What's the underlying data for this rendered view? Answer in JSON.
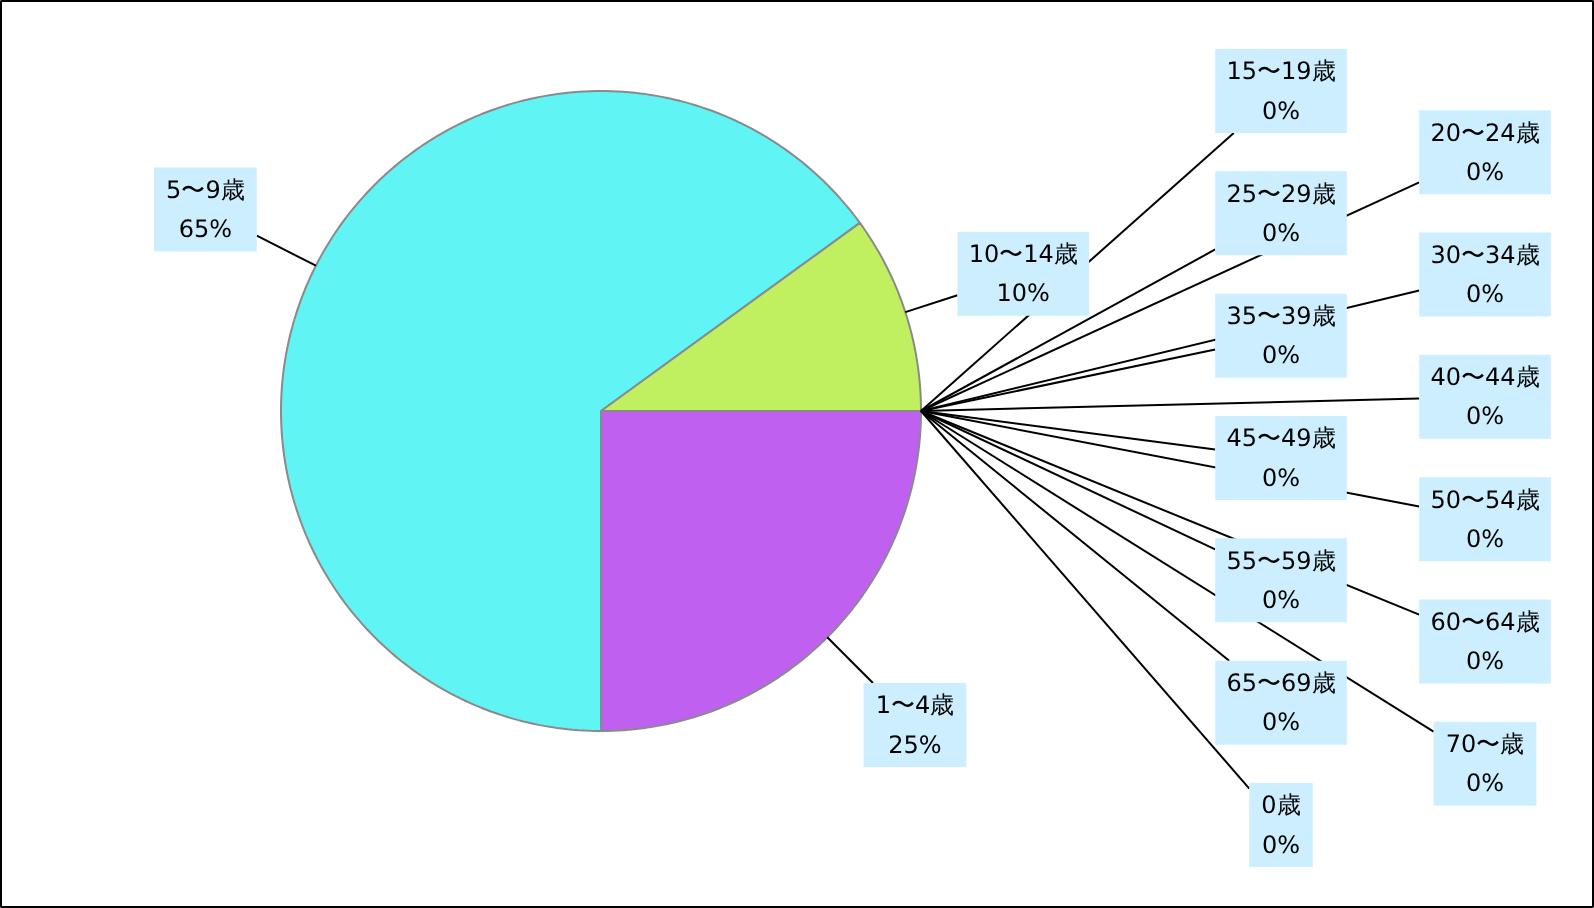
{
  "chart_data": {
    "type": "pie",
    "categories": [
      "0歳",
      "1〜4歳",
      "5〜9歳",
      "10〜14歳",
      "15〜19歳",
      "20〜24歳",
      "25〜29歳",
      "30〜34歳",
      "35〜39歳",
      "40〜44歳",
      "45〜49歳",
      "50〜54歳",
      "55〜59歳",
      "60〜64歳",
      "65〜69歳",
      "70〜歳"
    ],
    "values": [
      0,
      25,
      65,
      10,
      0,
      0,
      0,
      0,
      0,
      0,
      0,
      0,
      0,
      0,
      0,
      0
    ],
    "colors": [
      null,
      "#c060f0",
      "#60f4f4",
      "#c0f060",
      null,
      null,
      null,
      null,
      null,
      null,
      null,
      null,
      null,
      null,
      null,
      null
    ],
    "value_labels": [
      "0%",
      "25%",
      "65%",
      "10%",
      "0%",
      "0%",
      "0%",
      "0%",
      "0%",
      "0%",
      "0%",
      "0%",
      "0%",
      "0%",
      "0%",
      "0%"
    ]
  }
}
